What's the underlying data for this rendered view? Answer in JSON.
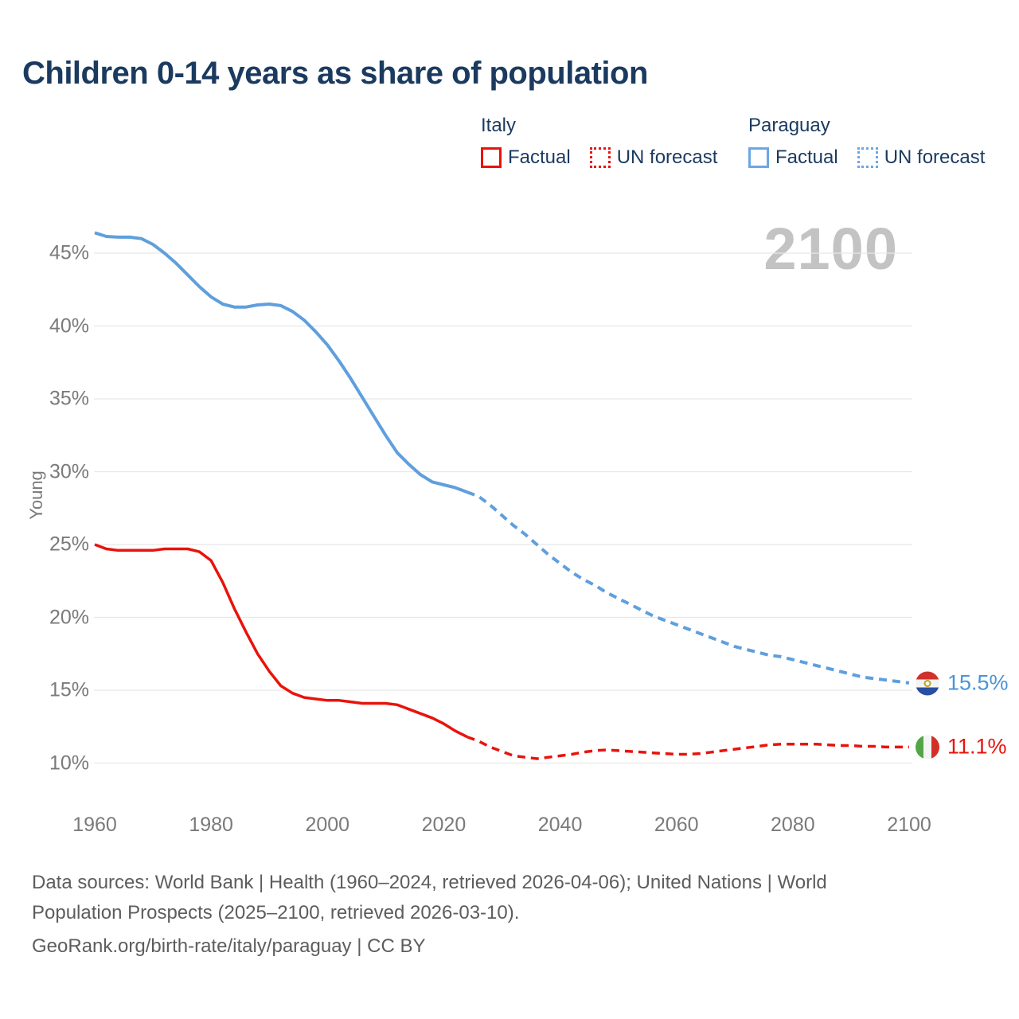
{
  "title": "Children 0-14 years as share of population",
  "watermark": "2100",
  "legend": {
    "groups": [
      {
        "name": "Italy",
        "factual_label": "Factual",
        "forecast_label": "UN forecast",
        "color": "#e8130c"
      },
      {
        "name": "Paraguay",
        "factual_label": "Factual",
        "forecast_label": "UN forecast",
        "color": "#6aa7e4"
      }
    ]
  },
  "end_labels": [
    {
      "country": "Paraguay",
      "value": "15.5%",
      "flag": "paraguay-flag",
      "color": "#4a94d8"
    },
    {
      "country": "Italy",
      "value": "11.1%",
      "flag": "italy-flag",
      "color": "#e8130c"
    }
  ],
  "footer": {
    "line1": "Data sources: World Bank | Health (1960–2024, retrieved 2026-04-06); United Nations | World",
    "line2": "Population Prospects (2025–2100, retrieved 2026-03-10).",
    "line3": "GeoRank.org/birth-rate/italy/paraguay | CC BY"
  },
  "chart_data": {
    "type": "line",
    "title": "Children 0-14 years as share of population",
    "xlabel": "",
    "ylabel": "Young",
    "xlim": [
      1960,
      2100
    ],
    "ylim": [
      7.5,
      47.5
    ],
    "grid": true,
    "legend_position": "top-right",
    "x_ticks": [
      {
        "value": 1960,
        "label": "1960"
      },
      {
        "value": 1980,
        "label": "1980"
      },
      {
        "value": 2000,
        "label": "2000"
      },
      {
        "value": 2020,
        "label": "2020"
      },
      {
        "value": 2040,
        "label": "2040"
      },
      {
        "value": 2060,
        "label": "2060"
      },
      {
        "value": 2080,
        "label": "2080"
      },
      {
        "value": 2100,
        "label": "2100"
      }
    ],
    "y_ticks": [
      {
        "value": 45,
        "label": "45%"
      },
      {
        "value": 40,
        "label": "40%"
      },
      {
        "value": 35,
        "label": "35%"
      },
      {
        "value": 30,
        "label": "30%"
      },
      {
        "value": 25,
        "label": "25%"
      },
      {
        "value": 20,
        "label": "20%"
      },
      {
        "value": 15,
        "label": "15%"
      },
      {
        "value": 10,
        "label": "10%"
      }
    ],
    "series": [
      {
        "name": "Paraguay Factual",
        "style": "solid",
        "color": "#5f9fdd",
        "width": 4,
        "points": [
          [
            1960,
            46.4
          ],
          [
            1962,
            46.15
          ],
          [
            1964,
            46.1
          ],
          [
            1966,
            46.1
          ],
          [
            1968,
            46.0
          ],
          [
            1970,
            45.6
          ],
          [
            1972,
            45.0
          ],
          [
            1974,
            44.3
          ],
          [
            1976,
            43.5
          ],
          [
            1978,
            42.7
          ],
          [
            1980,
            42.0
          ],
          [
            1982,
            41.5
          ],
          [
            1984,
            41.3
          ],
          [
            1986,
            41.3
          ],
          [
            1988,
            41.45
          ],
          [
            1990,
            41.5
          ],
          [
            1992,
            41.4
          ],
          [
            1994,
            41.0
          ],
          [
            1996,
            40.4
          ],
          [
            1998,
            39.6
          ],
          [
            2000,
            38.7
          ],
          [
            2002,
            37.6
          ],
          [
            2004,
            36.4
          ],
          [
            2006,
            35.1
          ],
          [
            2008,
            33.8
          ],
          [
            2010,
            32.5
          ],
          [
            2012,
            31.3
          ],
          [
            2014,
            30.5
          ],
          [
            2016,
            29.8
          ],
          [
            2018,
            29.3
          ],
          [
            2020,
            29.1
          ],
          [
            2022,
            28.9
          ],
          [
            2024,
            28.6
          ]
        ]
      },
      {
        "name": "Paraguay UN forecast",
        "style": "dashed",
        "color": "#5f9fdd",
        "width": 4,
        "points": [
          [
            2024,
            28.6
          ],
          [
            2026,
            28.3
          ],
          [
            2028,
            27.7
          ],
          [
            2030,
            27.0
          ],
          [
            2032,
            26.3
          ],
          [
            2034,
            25.7
          ],
          [
            2036,
            25.0
          ],
          [
            2038,
            24.3
          ],
          [
            2040,
            23.7
          ],
          [
            2042,
            23.1
          ],
          [
            2044,
            22.6
          ],
          [
            2046,
            22.2
          ],
          [
            2048,
            21.7
          ],
          [
            2050,
            21.3
          ],
          [
            2052,
            20.9
          ],
          [
            2054,
            20.5
          ],
          [
            2056,
            20.1
          ],
          [
            2058,
            19.8
          ],
          [
            2060,
            19.5
          ],
          [
            2062,
            19.2
          ],
          [
            2064,
            18.9
          ],
          [
            2066,
            18.6
          ],
          [
            2068,
            18.3
          ],
          [
            2070,
            18.0
          ],
          [
            2072,
            17.8
          ],
          [
            2074,
            17.6
          ],
          [
            2076,
            17.4
          ],
          [
            2078,
            17.3
          ],
          [
            2080,
            17.1
          ],
          [
            2082,
            16.9
          ],
          [
            2084,
            16.7
          ],
          [
            2086,
            16.5
          ],
          [
            2088,
            16.3
          ],
          [
            2090,
            16.1
          ],
          [
            2092,
            15.9
          ],
          [
            2094,
            15.8
          ],
          [
            2096,
            15.7
          ],
          [
            2098,
            15.6
          ],
          [
            2100,
            15.5
          ]
        ]
      },
      {
        "name": "Italy Factual",
        "style": "solid",
        "color": "#e8130c",
        "width": 3.5,
        "points": [
          [
            1960,
            25.0
          ],
          [
            1962,
            24.7
          ],
          [
            1964,
            24.6
          ],
          [
            1966,
            24.6
          ],
          [
            1968,
            24.6
          ],
          [
            1970,
            24.6
          ],
          [
            1972,
            24.7
          ],
          [
            1974,
            24.7
          ],
          [
            1976,
            24.7
          ],
          [
            1978,
            24.5
          ],
          [
            1980,
            23.9
          ],
          [
            1982,
            22.4
          ],
          [
            1984,
            20.6
          ],
          [
            1986,
            19.0
          ],
          [
            1988,
            17.5
          ],
          [
            1990,
            16.3
          ],
          [
            1992,
            15.3
          ],
          [
            1994,
            14.8
          ],
          [
            1996,
            14.5
          ],
          [
            1998,
            14.4
          ],
          [
            2000,
            14.3
          ],
          [
            2002,
            14.3
          ],
          [
            2004,
            14.2
          ],
          [
            2006,
            14.1
          ],
          [
            2008,
            14.1
          ],
          [
            2010,
            14.1
          ],
          [
            2012,
            14.0
          ],
          [
            2014,
            13.7
          ],
          [
            2016,
            13.4
          ],
          [
            2018,
            13.1
          ],
          [
            2020,
            12.7
          ],
          [
            2022,
            12.2
          ],
          [
            2024,
            11.8
          ]
        ]
      },
      {
        "name": "Italy UN forecast",
        "style": "dashed",
        "color": "#e8130c",
        "width": 3.5,
        "points": [
          [
            2024,
            11.8
          ],
          [
            2026,
            11.5
          ],
          [
            2028,
            11.1
          ],
          [
            2030,
            10.8
          ],
          [
            2032,
            10.5
          ],
          [
            2034,
            10.4
          ],
          [
            2036,
            10.3
          ],
          [
            2038,
            10.4
          ],
          [
            2040,
            10.5
          ],
          [
            2042,
            10.6
          ],
          [
            2044,
            10.75
          ],
          [
            2046,
            10.85
          ],
          [
            2048,
            10.9
          ],
          [
            2050,
            10.85
          ],
          [
            2052,
            10.8
          ],
          [
            2054,
            10.75
          ],
          [
            2056,
            10.7
          ],
          [
            2058,
            10.65
          ],
          [
            2060,
            10.6
          ],
          [
            2062,
            10.6
          ],
          [
            2064,
            10.65
          ],
          [
            2066,
            10.75
          ],
          [
            2068,
            10.85
          ],
          [
            2070,
            10.95
          ],
          [
            2072,
            11.05
          ],
          [
            2074,
            11.15
          ],
          [
            2076,
            11.25
          ],
          [
            2078,
            11.3
          ],
          [
            2080,
            11.3
          ],
          [
            2082,
            11.3
          ],
          [
            2084,
            11.3
          ],
          [
            2086,
            11.25
          ],
          [
            2088,
            11.2
          ],
          [
            2090,
            11.2
          ],
          [
            2092,
            11.15
          ],
          [
            2094,
            11.15
          ],
          [
            2096,
            11.1
          ],
          [
            2098,
            11.1
          ],
          [
            2100,
            11.1
          ]
        ]
      }
    ]
  }
}
